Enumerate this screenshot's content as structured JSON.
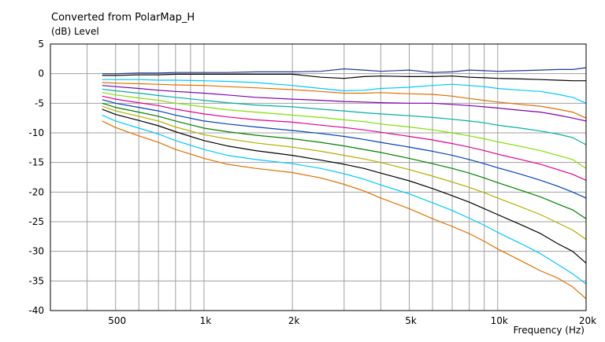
{
  "chart_data": {
    "type": "line",
    "title": "Converted from PolarMap_H",
    "ylabel": "(dB)  Level",
    "xlabel": "Frequency  (Hz)",
    "xscale": "log",
    "xlim": [
      300,
      20000
    ],
    "ylim": [
      -40,
      5
    ],
    "grid": true,
    "xticks": [
      {
        "value": 500,
        "label": "500"
      },
      {
        "value": 1000,
        "label": "1k"
      },
      {
        "value": 2000,
        "label": "2k"
      },
      {
        "value": 5000,
        "label": "5k"
      },
      {
        "value": 10000,
        "label": "10k"
      },
      {
        "value": 20000,
        "label": "20k"
      }
    ],
    "yticks": [
      5,
      0,
      -5,
      -10,
      -15,
      -20,
      -25,
      -30,
      -35,
      -40
    ],
    "x": [
      450,
      500,
      600,
      700,
      800,
      1000,
      1200,
      1500,
      2000,
      2500,
      3000,
      3500,
      4000,
      5000,
      6000,
      7000,
      8000,
      9000,
      10000,
      12000,
      14000,
      16000,
      18000,
      20000
    ],
    "series": [
      {
        "color": "#1f3a93",
        "values": [
          0.0,
          0.0,
          0.1,
          0.1,
          0.2,
          0.2,
          0.2,
          0.3,
          0.3,
          0.4,
          0.8,
          0.6,
          0.4,
          0.6,
          0.2,
          0.3,
          0.6,
          0.5,
          0.4,
          0.5,
          0.6,
          0.7,
          0.7,
          1.0
        ]
      },
      {
        "color": "#000000",
        "values": [
          -0.3,
          -0.3,
          -0.2,
          -0.2,
          -0.1,
          -0.1,
          -0.1,
          -0.1,
          -0.1,
          -0.6,
          -0.8,
          -0.5,
          -0.4,
          -0.5,
          -0.5,
          -0.4,
          -0.6,
          -0.7,
          -0.8,
          -0.9,
          -1.0,
          -1.1,
          -1.2,
          -1.2
        ]
      },
      {
        "color": "#00c8ff",
        "values": [
          -1.0,
          -1.0,
          -1.0,
          -1.1,
          -1.1,
          -1.2,
          -1.3,
          -1.5,
          -2.0,
          -2.5,
          -2.9,
          -2.8,
          -2.5,
          -2.3,
          -2.0,
          -1.8,
          -2.0,
          -2.2,
          -2.5,
          -2.8,
          -3.0,
          -3.5,
          -4.0,
          -5.0
        ]
      },
      {
        "color": "#e07000",
        "values": [
          -1.5,
          -1.6,
          -1.7,
          -1.8,
          -1.9,
          -2.0,
          -2.2,
          -2.4,
          -2.7,
          -3.0,
          -3.3,
          -3.3,
          -3.2,
          -3.4,
          -3.5,
          -3.8,
          -4.2,
          -4.5,
          -4.8,
          -5.2,
          -5.5,
          -6.0,
          -6.5,
          -7.5
        ]
      },
      {
        "color": "#8000b0",
        "values": [
          -2.0,
          -2.2,
          -2.5,
          -2.8,
          -3.0,
          -3.3,
          -3.6,
          -4.0,
          -4.3,
          -4.5,
          -4.7,
          -4.8,
          -4.9,
          -5.0,
          -5.0,
          -5.2,
          -5.4,
          -5.6,
          -5.8,
          -6.2,
          -6.5,
          -7.0,
          -7.5,
          -8.0
        ]
      },
      {
        "color": "#00b0a0",
        "values": [
          -2.6,
          -2.9,
          -3.3,
          -3.7,
          -4.0,
          -4.5,
          -4.9,
          -5.3,
          -5.6,
          -6.0,
          -6.3,
          -6.6,
          -6.8,
          -7.1,
          -7.4,
          -7.7,
          -8.0,
          -8.3,
          -8.7,
          -9.2,
          -9.7,
          -10.2,
          -10.8,
          -12.0
        ]
      },
      {
        "color": "#80e000",
        "values": [
          -3.2,
          -3.6,
          -4.1,
          -4.5,
          -5.0,
          -5.6,
          -6.1,
          -6.5,
          -7.0,
          -7.4,
          -7.8,
          -8.1,
          -8.5,
          -9.0,
          -9.5,
          -10.0,
          -10.5,
          -11.0,
          -11.5,
          -12.3,
          -13.0,
          -13.8,
          -14.5,
          -16.0
        ]
      },
      {
        "color": "#e00090",
        "values": [
          -3.8,
          -4.3,
          -4.9,
          -5.4,
          -6.0,
          -6.8,
          -7.3,
          -7.8,
          -8.2,
          -8.7,
          -9.1,
          -9.5,
          -9.9,
          -10.6,
          -11.2,
          -11.8,
          -12.4,
          -13.0,
          -13.6,
          -14.5,
          -15.3,
          -16.2,
          -17.0,
          -18.0
        ]
      },
      {
        "color": "#0040c0",
        "values": [
          -4.4,
          -5.0,
          -5.7,
          -6.3,
          -7.0,
          -8.0,
          -8.5,
          -9.0,
          -9.6,
          -10.1,
          -10.6,
          -11.1,
          -11.6,
          -12.4,
          -13.1,
          -13.8,
          -14.5,
          -15.2,
          -15.9,
          -17.0,
          -18.0,
          -19.0,
          -20.0,
          -21.0
        ]
      },
      {
        "color": "#008000",
        "values": [
          -5.0,
          -5.7,
          -6.5,
          -7.2,
          -8.0,
          -9.2,
          -9.8,
          -10.4,
          -11.0,
          -11.6,
          -12.2,
          -12.8,
          -13.3,
          -14.3,
          -15.2,
          -16.0,
          -16.8,
          -17.6,
          -18.4,
          -19.7,
          -20.8,
          -22.0,
          -23.0,
          -24.5
        ]
      },
      {
        "color": "#b0b000",
        "values": [
          -5.5,
          -6.3,
          -7.2,
          -8.0,
          -9.0,
          -10.3,
          -11.0,
          -11.7,
          -12.4,
          -13.1,
          -13.8,
          -14.4,
          -15.0,
          -16.2,
          -17.3,
          -18.3,
          -19.2,
          -20.1,
          -21.0,
          -22.5,
          -23.8,
          -25.2,
          -26.4,
          -28.0
        ]
      },
      {
        "color": "#000000",
        "values": [
          -6.0,
          -6.9,
          -7.9,
          -8.8,
          -9.8,
          -11.3,
          -12.2,
          -13.0,
          -13.8,
          -14.6,
          -15.3,
          -16.0,
          -16.8,
          -18.1,
          -19.4,
          -20.6,
          -21.7,
          -22.8,
          -23.8,
          -25.5,
          -27.0,
          -28.7,
          -30.0,
          -32.0
        ]
      },
      {
        "color": "#00c8ff",
        "values": [
          -7.0,
          -8.0,
          -9.2,
          -10.2,
          -11.3,
          -12.8,
          -13.8,
          -14.5,
          -15.2,
          -16.0,
          -16.9,
          -17.8,
          -18.8,
          -20.3,
          -21.8,
          -23.1,
          -24.4,
          -25.6,
          -26.8,
          -28.7,
          -30.4,
          -32.2,
          -33.8,
          -35.5
        ]
      },
      {
        "color": "#e07000",
        "values": [
          -8.0,
          -9.1,
          -10.5,
          -11.6,
          -12.8,
          -14.3,
          -15.3,
          -16.0,
          -16.7,
          -17.6,
          -18.7,
          -19.8,
          -21.0,
          -22.8,
          -24.5,
          -25.8,
          -27.0,
          -28.3,
          -29.6,
          -31.6,
          -33.3,
          -34.5,
          -36.0,
          -38.0
        ]
      }
    ]
  }
}
